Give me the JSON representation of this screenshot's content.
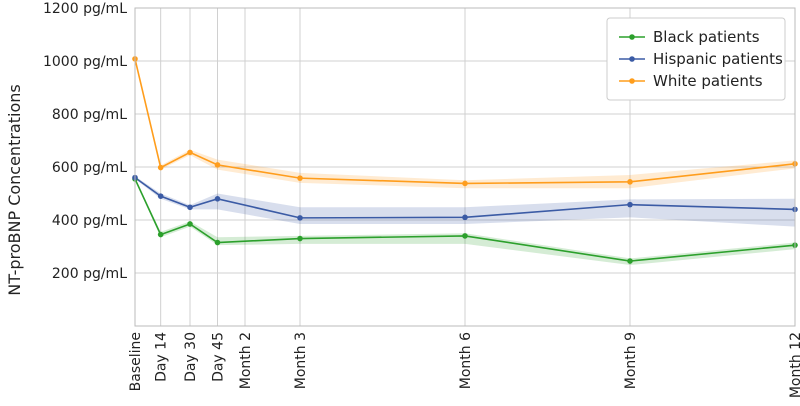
{
  "chart_data": {
    "type": "line",
    "ylabel": "NT-proBNP Concentrations",
    "y_unit": "pg/mL",
    "ylim": [
      0,
      1200
    ],
    "yticks": [
      200,
      400,
      600,
      800,
      1000,
      1200
    ],
    "ytick_labels": [
      "200 pg/mL",
      "400 pg/mL",
      "600 pg/mL",
      "800 pg/mL",
      "1000 pg/mL",
      "1200 pg/mL"
    ],
    "x_days": [
      0,
      14,
      30,
      45,
      60,
      90,
      180,
      270,
      360
    ],
    "categories": [
      "Baseline",
      "Day 14",
      "Day 30",
      "Day 45",
      "Month 2",
      "Month 3",
      "Month 6",
      "Month 9",
      "Month 12"
    ],
    "grid": true,
    "legend_position": "top-right",
    "series": [
      {
        "name": "Black patients",
        "color": "#2ca02c",
        "x": [
          0,
          14,
          30,
          45,
          90,
          180,
          270,
          360
        ],
        "values": [
          555,
          345,
          385,
          315,
          330,
          340,
          245,
          305
        ],
        "lower": [
          550,
          335,
          375,
          305,
          310,
          310,
          230,
          290
        ],
        "upper": [
          560,
          355,
          395,
          335,
          340,
          350,
          255,
          315
        ]
      },
      {
        "name": "Hispanic patients",
        "color": "#3b5ba5",
        "x": [
          0,
          14,
          30,
          45,
          90,
          180,
          270,
          360
        ],
        "values": [
          560,
          490,
          448,
          480,
          408,
          410,
          458,
          440
        ],
        "lower": [
          555,
          480,
          440,
          440,
          385,
          385,
          410,
          375
        ],
        "upper": [
          565,
          500,
          456,
          500,
          448,
          448,
          478,
          480
        ]
      },
      {
        "name": "White patients",
        "color": "#ff9d1c",
        "x": [
          0,
          14,
          30,
          45,
          90,
          180,
          270,
          360
        ],
        "values": [
          1008,
          598,
          655,
          608,
          558,
          538,
          544,
          612
        ],
        "lower": [
          1000,
          590,
          645,
          590,
          540,
          520,
          520,
          595
        ],
        "upper": [
          1015,
          606,
          665,
          628,
          578,
          550,
          570,
          625
        ]
      }
    ]
  }
}
